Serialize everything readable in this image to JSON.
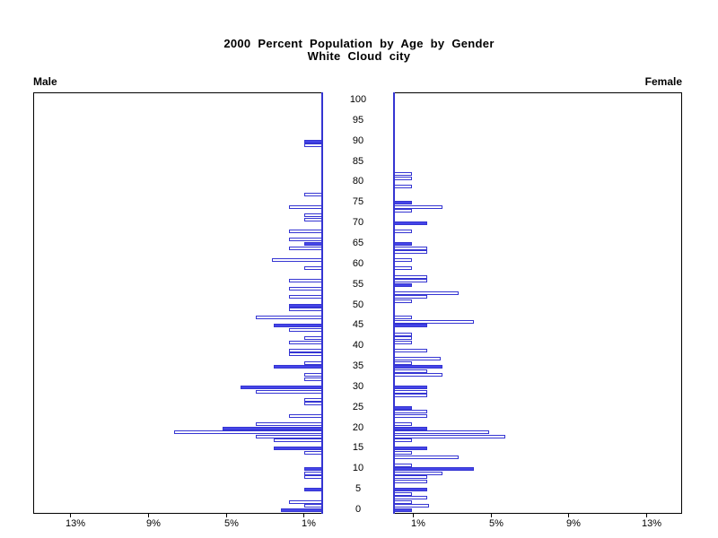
{
  "title": {
    "line1": "2000 Percent Population by Age by Gender",
    "line2": "White Cloud city"
  },
  "panel_labels": {
    "left": "Male",
    "right": "Female"
  },
  "colors": {
    "bar_fill": "#4545e8",
    "bar_outline": "#3535d2",
    "zero_line": "#3535d2",
    "axis": "#000000",
    "background": "#ffffff",
    "text": "#000000"
  },
  "chart_data": {
    "type": "bar",
    "subtype": "population_pyramid",
    "title": "2000 Percent Population by Age by Gender",
    "subtitle": "White Cloud city",
    "orientation": "horizontal, male bars grow left, female bars grow right",
    "x_axis": {
      "unit": "percent of population",
      "ticks": [
        1,
        5,
        9,
        13
      ],
      "tick_labels": [
        "1%",
        "5%",
        "9%",
        "13%"
      ],
      "max_pct": 15,
      "grid": false
    },
    "y_axis": {
      "unit": "age in years",
      "min": 0,
      "max": 100,
      "tick_interval": 5,
      "tick_labels": [
        "0",
        "5",
        "10",
        "15",
        "20",
        "25",
        "30",
        "35",
        "40",
        "45",
        "50",
        "55",
        "60",
        "65",
        "70",
        "75",
        "80",
        "85",
        "90",
        "95",
        "100"
      ]
    },
    "series": [
      {
        "name": "Male",
        "panel": "left"
      },
      {
        "name": "Female",
        "panel": "right"
      }
    ],
    "male": [
      {
        "age": 0,
        "pct": 2.1,
        "fill": "solid"
      },
      {
        "age": 1,
        "pct": 0.9,
        "fill": "hollow"
      },
      {
        "age": 2,
        "pct": 1.7,
        "fill": "hollow"
      },
      {
        "age": 5,
        "pct": 0.9,
        "fill": "solid"
      },
      {
        "age": 8,
        "pct": 0.9,
        "fill": "hollow"
      },
      {
        "age": 9,
        "pct": 0.9,
        "fill": "hollow"
      },
      {
        "age": 10,
        "pct": 0.9,
        "fill": "solid"
      },
      {
        "age": 14,
        "pct": 0.9,
        "fill": "hollow"
      },
      {
        "age": 15,
        "pct": 2.5,
        "fill": "solid"
      },
      {
        "age": 17,
        "pct": 2.5,
        "fill": "hollow"
      },
      {
        "age": 18,
        "pct": 3.4,
        "fill": "hollow"
      },
      {
        "age": 19,
        "pct": 7.6,
        "fill": "hollow"
      },
      {
        "age": 20,
        "pct": 5.1,
        "fill": "solid"
      },
      {
        "age": 21,
        "pct": 3.4,
        "fill": "hollow"
      },
      {
        "age": 23,
        "pct": 1.7,
        "fill": "hollow"
      },
      {
        "age": 26,
        "pct": 0.9,
        "fill": "hollow"
      },
      {
        "age": 27,
        "pct": 0.9,
        "fill": "hollow"
      },
      {
        "age": 29,
        "pct": 3.4,
        "fill": "hollow"
      },
      {
        "age": 30,
        "pct": 4.2,
        "fill": "solid"
      },
      {
        "age": 32,
        "pct": 0.9,
        "fill": "hollow"
      },
      {
        "age": 33,
        "pct": 0.9,
        "fill": "hollow"
      },
      {
        "age": 35,
        "pct": 2.5,
        "fill": "solid"
      },
      {
        "age": 36,
        "pct": 0.9,
        "fill": "hollow"
      },
      {
        "age": 38,
        "pct": 1.7,
        "fill": "hollow"
      },
      {
        "age": 39,
        "pct": 1.7,
        "fill": "hollow"
      },
      {
        "age": 41,
        "pct": 1.7,
        "fill": "hollow"
      },
      {
        "age": 42,
        "pct": 0.9,
        "fill": "hollow"
      },
      {
        "age": 44,
        "pct": 1.7,
        "fill": "hollow"
      },
      {
        "age": 45,
        "pct": 2.5,
        "fill": "solid"
      },
      {
        "age": 47,
        "pct": 3.4,
        "fill": "hollow"
      },
      {
        "age": 49,
        "pct": 1.7,
        "fill": "hollow"
      },
      {
        "age": 50,
        "pct": 1.7,
        "fill": "solid"
      },
      {
        "age": 52,
        "pct": 1.7,
        "fill": "hollow"
      },
      {
        "age": 54,
        "pct": 1.7,
        "fill": "hollow"
      },
      {
        "age": 56,
        "pct": 1.7,
        "fill": "hollow"
      },
      {
        "age": 59,
        "pct": 0.9,
        "fill": "hollow"
      },
      {
        "age": 61,
        "pct": 2.6,
        "fill": "hollow"
      },
      {
        "age": 64,
        "pct": 1.7,
        "fill": "hollow"
      },
      {
        "age": 65,
        "pct": 0.9,
        "fill": "solid"
      },
      {
        "age": 66,
        "pct": 1.7,
        "fill": "hollow"
      },
      {
        "age": 68,
        "pct": 1.7,
        "fill": "hollow"
      },
      {
        "age": 71,
        "pct": 0.9,
        "fill": "hollow"
      },
      {
        "age": 72,
        "pct": 0.9,
        "fill": "hollow"
      },
      {
        "age": 74,
        "pct": 1.7,
        "fill": "hollow"
      },
      {
        "age": 77,
        "pct": 0.9,
        "fill": "hollow"
      },
      {
        "age": 89,
        "pct": 0.9,
        "fill": "hollow"
      },
      {
        "age": 90,
        "pct": 0.9,
        "fill": "solid"
      }
    ],
    "female": [
      {
        "age": 0,
        "pct": 0.9,
        "fill": "solid"
      },
      {
        "age": 1,
        "pct": 1.8,
        "fill": "hollow"
      },
      {
        "age": 2,
        "pct": 0.9,
        "fill": "hollow"
      },
      {
        "age": 3,
        "pct": 1.7,
        "fill": "hollow"
      },
      {
        "age": 4,
        "pct": 0.9,
        "fill": "hollow"
      },
      {
        "age": 5,
        "pct": 1.7,
        "fill": "solid"
      },
      {
        "age": 7,
        "pct": 1.7,
        "fill": "hollow"
      },
      {
        "age": 8,
        "pct": 1.7,
        "fill": "hollow"
      },
      {
        "age": 9,
        "pct": 2.5,
        "fill": "hollow"
      },
      {
        "age": 10,
        "pct": 4.1,
        "fill": "solid"
      },
      {
        "age": 11,
        "pct": 0.9,
        "fill": "hollow"
      },
      {
        "age": 13,
        "pct": 3.3,
        "fill": "hollow"
      },
      {
        "age": 14,
        "pct": 0.9,
        "fill": "hollow"
      },
      {
        "age": 15,
        "pct": 1.7,
        "fill": "solid"
      },
      {
        "age": 17,
        "pct": 0.9,
        "fill": "hollow"
      },
      {
        "age": 18,
        "pct": 5.7,
        "fill": "hollow"
      },
      {
        "age": 19,
        "pct": 4.9,
        "fill": "hollow"
      },
      {
        "age": 20,
        "pct": 1.7,
        "fill": "solid"
      },
      {
        "age": 21,
        "pct": 0.9,
        "fill": "hollow"
      },
      {
        "age": 23,
        "pct": 1.7,
        "fill": "hollow"
      },
      {
        "age": 24,
        "pct": 1.7,
        "fill": "hollow"
      },
      {
        "age": 25,
        "pct": 0.9,
        "fill": "solid"
      },
      {
        "age": 28,
        "pct": 1.7,
        "fill": "hollow"
      },
      {
        "age": 29,
        "pct": 1.7,
        "fill": "hollow"
      },
      {
        "age": 30,
        "pct": 1.7,
        "fill": "solid"
      },
      {
        "age": 33,
        "pct": 2.5,
        "fill": "hollow"
      },
      {
        "age": 34,
        "pct": 1.7,
        "fill": "hollow"
      },
      {
        "age": 35,
        "pct": 2.5,
        "fill": "solid"
      },
      {
        "age": 36,
        "pct": 0.9,
        "fill": "hollow"
      },
      {
        "age": 37,
        "pct": 2.4,
        "fill": "hollow"
      },
      {
        "age": 39,
        "pct": 1.7,
        "fill": "hollow"
      },
      {
        "age": 41,
        "pct": 0.9,
        "fill": "hollow"
      },
      {
        "age": 42,
        "pct": 0.9,
        "fill": "hollow"
      },
      {
        "age": 43,
        "pct": 0.9,
        "fill": "hollow"
      },
      {
        "age": 45,
        "pct": 1.7,
        "fill": "solid"
      },
      {
        "age": 46,
        "pct": 4.1,
        "fill": "hollow"
      },
      {
        "age": 47,
        "pct": 0.9,
        "fill": "hollow"
      },
      {
        "age": 51,
        "pct": 0.9,
        "fill": "hollow"
      },
      {
        "age": 52,
        "pct": 1.7,
        "fill": "hollow"
      },
      {
        "age": 53,
        "pct": 3.3,
        "fill": "hollow"
      },
      {
        "age": 55,
        "pct": 0.9,
        "fill": "solid"
      },
      {
        "age": 56,
        "pct": 1.7,
        "fill": "hollow"
      },
      {
        "age": 57,
        "pct": 1.7,
        "fill": "hollow"
      },
      {
        "age": 59,
        "pct": 0.9,
        "fill": "hollow"
      },
      {
        "age": 61,
        "pct": 0.9,
        "fill": "hollow"
      },
      {
        "age": 63,
        "pct": 1.7,
        "fill": "hollow"
      },
      {
        "age": 64,
        "pct": 1.7,
        "fill": "hollow"
      },
      {
        "age": 65,
        "pct": 0.9,
        "fill": "solid"
      },
      {
        "age": 68,
        "pct": 0.9,
        "fill": "hollow"
      },
      {
        "age": 70,
        "pct": 1.7,
        "fill": "solid"
      },
      {
        "age": 73,
        "pct": 0.9,
        "fill": "hollow"
      },
      {
        "age": 74,
        "pct": 2.5,
        "fill": "hollow"
      },
      {
        "age": 75,
        "pct": 0.9,
        "fill": "solid"
      },
      {
        "age": 79,
        "pct": 0.9,
        "fill": "hollow"
      },
      {
        "age": 81,
        "pct": 0.9,
        "fill": "hollow"
      },
      {
        "age": 82,
        "pct": 0.9,
        "fill": "hollow"
      }
    ]
  }
}
